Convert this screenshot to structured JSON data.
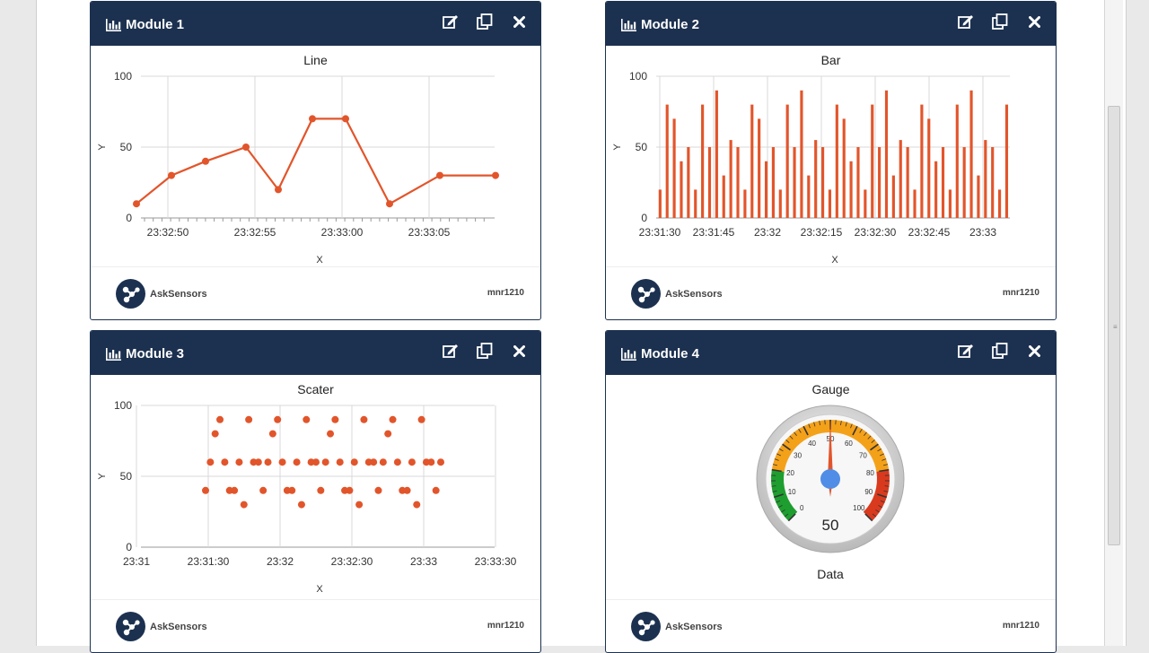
{
  "brand": {
    "name": "AskSensors",
    "owner": "mnr1210"
  },
  "colors": {
    "header": "#1c3150",
    "series": "#e2552b"
  },
  "modules": [
    {
      "title": "Module 1",
      "chart_title": "Line",
      "chart_data": {
        "type": "line",
        "title": "Line",
        "ylabel": "Y",
        "xlabel": "X",
        "ylim": [
          0,
          100
        ],
        "ytick_labels": [
          "0",
          "50",
          "100"
        ],
        "xtick_labels": [
          "23:32:50",
          "23:32:55",
          "23:33:00",
          "23:33:05"
        ],
        "values": [
          10,
          30,
          40,
          50,
          20,
          70,
          70,
          10,
          30,
          30
        ]
      }
    },
    {
      "title": "Module 2",
      "chart_title": "Bar",
      "chart_data": {
        "type": "bar",
        "title": "Bar",
        "ylabel": "Y",
        "xlabel": "X",
        "ylim": [
          0,
          100
        ],
        "ytick_labels": [
          "0",
          "50",
          "100"
        ],
        "xtick_labels": [
          "23:31:30",
          "23:31:45",
          "23:32",
          "23:32:15",
          "23:32:30",
          "23:32:45",
          "23:33"
        ],
        "values": [
          20,
          80,
          70,
          40,
          50,
          20,
          80,
          50,
          90,
          30,
          55,
          50,
          20,
          80,
          70,
          40,
          50,
          20,
          80,
          50,
          90,
          30,
          55,
          50,
          20,
          80,
          70,
          40,
          50,
          20,
          80,
          50,
          90,
          30,
          55,
          50,
          20,
          80,
          70,
          40,
          50,
          20,
          80,
          50,
          90,
          30,
          55,
          50,
          20,
          80
        ]
      }
    },
    {
      "title": "Module 3",
      "chart_title": "Scater",
      "chart_data": {
        "type": "scatter",
        "title": "Scater",
        "ylabel": "Y",
        "xlabel": "X",
        "ylim": [
          0,
          100
        ],
        "ytick_labels": [
          "0",
          "50",
          "100"
        ],
        "xtick_labels": [
          "23:31",
          "23:31:30",
          "23:32",
          "23:32:30",
          "23:33",
          "23:33:30"
        ],
        "values": [
          40,
          60,
          80,
          90,
          60,
          40,
          40,
          60,
          30,
          90,
          60,
          60,
          40,
          60,
          80,
          90,
          60,
          40,
          40,
          60,
          30,
          90,
          60,
          60,
          40,
          60,
          80,
          90,
          60,
          40,
          40,
          60,
          30,
          90,
          60,
          60,
          40,
          60,
          80,
          90,
          60,
          40,
          40,
          60,
          30,
          90,
          60,
          60,
          40,
          60
        ]
      }
    },
    {
      "title": "Module 4",
      "chart_title": "Gauge",
      "gauge": {
        "label": "Data",
        "value": 50,
        "min": 0,
        "max": 100,
        "tick_labels": [
          "0",
          "10",
          "20",
          "30",
          "40",
          "50",
          "60",
          "70",
          "80",
          "90",
          "100"
        ]
      }
    }
  ]
}
